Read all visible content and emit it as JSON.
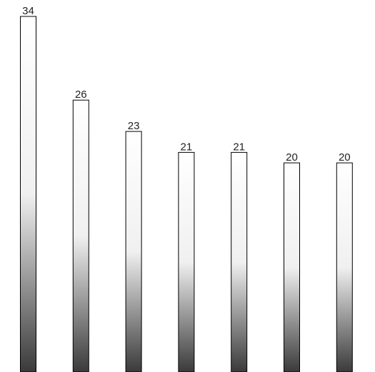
{
  "chart_data": {
    "type": "bar",
    "title": "",
    "xlabel": "",
    "ylabel": "",
    "categories": [
      "",
      "",
      "",
      "",
      "",
      "",
      ""
    ],
    "values": [
      34,
      26,
      23,
      21,
      21,
      20,
      20
    ],
    "ylim": [
      0,
      34
    ],
    "grid": false,
    "legend": "none",
    "bar_fill_top": "#ffffff",
    "bar_fill_mid": "#f0f0f0",
    "bar_fill_bottom": "#3a3a3a",
    "bar_stroke": "#000000"
  }
}
